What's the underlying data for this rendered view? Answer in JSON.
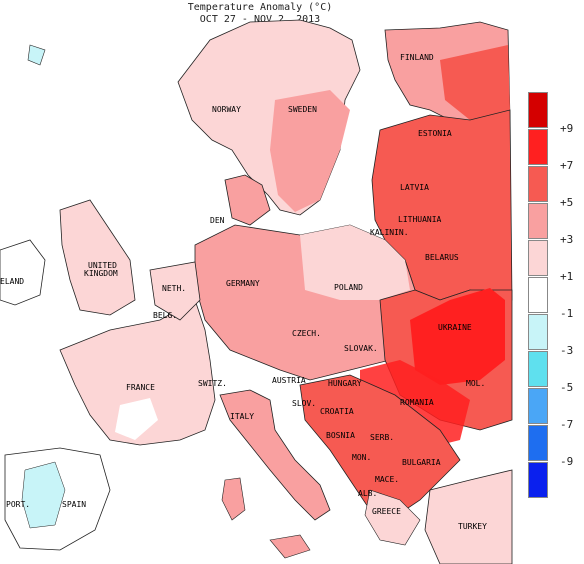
{
  "title": {
    "line1": "Temperature Anomaly (°C)",
    "line2": "OCT 27 - NOV 2, 2013"
  },
  "legend": {
    "bins": [
      {
        "color": "#d40000",
        "label": "+9"
      },
      {
        "color": "#ff2020",
        "label": "+7"
      },
      {
        "color": "#f65a52",
        "label": "+5"
      },
      {
        "color": "#f9a0a0",
        "label": "+3"
      },
      {
        "color": "#fcd6d6",
        "label": "+1"
      },
      {
        "color": "#ffffff",
        "label": "-1"
      },
      {
        "color": "#c8f4f8",
        "label": "-3"
      },
      {
        "color": "#5fe0ee",
        "label": "-5"
      },
      {
        "color": "#4aa6f6",
        "label": "-7"
      },
      {
        "color": "#1e6ef0",
        "label": "-9"
      },
      {
        "color": "#0a20ee",
        "label": ""
      }
    ]
  },
  "labels": {
    "finland": "FINLAND",
    "norway": "NORWAY",
    "sweden": "SWEDEN",
    "estonia": "ESTONIA",
    "latvia": "LATVIA",
    "lithuania": "LITHUANIA",
    "kalinin": "KALININ.",
    "belarus": "BELARUS",
    "den": "DEN",
    "united": "UNITED",
    "kingdom": "KINGDOM",
    "ireland": "ELAND",
    "neth": "NETH.",
    "belg": "BELG.",
    "germany": "GERMANY",
    "poland": "POLAND",
    "czech": "CZECH.",
    "slovak": "SLOVAK.",
    "ukraine": "UKRAINE",
    "mol": "MOL.",
    "france": "FRANCE",
    "switz": "SWITZ.",
    "austria": "AUSTRIA",
    "hungary": "HUNGARY",
    "romania": "ROMANIA",
    "slov": "SLOV.",
    "croatia": "CROATIA",
    "italy": "ITALY",
    "bosnia": "BOSNIA",
    "serb": "SERB.",
    "mon": "MON.",
    "bulgaria": "BULGARIA",
    "mace": "MACE.",
    "alb": "ALB.",
    "greece": "GREECE",
    "turkey": "TURKEY",
    "port": "PORT.",
    "spain": "SPAIN"
  },
  "colors": {
    "water": "#ffffff",
    "border": "#222222"
  }
}
